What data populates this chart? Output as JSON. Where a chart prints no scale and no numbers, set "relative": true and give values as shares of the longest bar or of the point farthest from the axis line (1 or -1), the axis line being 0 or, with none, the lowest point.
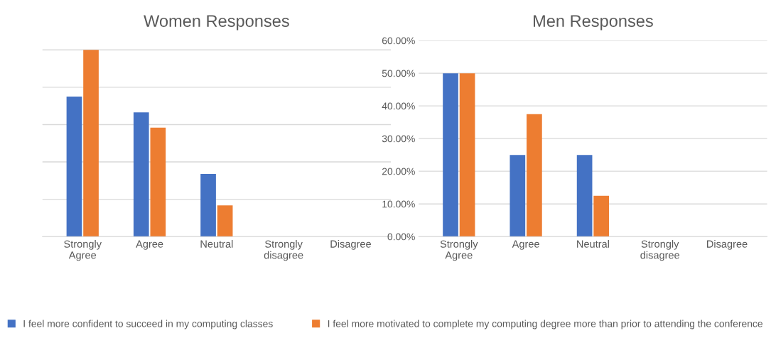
{
  "chart_data": [
    {
      "type": "bar",
      "title": "Women Responses",
      "categories": [
        "Strongly Agree",
        "Agree",
        "Neutral",
        "Strongly disagree",
        "Disagree"
      ],
      "relative": true,
      "grid": "y",
      "legend": "bottom",
      "series": [
        {
          "name": "I feel more confident to succeed in my computing classes",
          "color": "#4472c4",
          "values": [
            0.75,
            0.665,
            0.335,
            0,
            0
          ]
        },
        {
          "name": "I feel more motivated to complete my computing degree more than prior to attending the conference",
          "color": "#ed7d31",
          "values": [
            1,
            0.584,
            0.167,
            0,
            0
          ]
        }
      ]
    },
    {
      "type": "bar",
      "title": "Men Responses",
      "categories": [
        "Strongly Agree",
        "Agree",
        "Neutral",
        "Strongly disagree",
        "Disagree"
      ],
      "ylim": [
        0,
        60
      ],
      "yticks": [
        {
          "value": 0,
          "label": "0.00%"
        },
        {
          "value": 10,
          "label": "10.00%"
        },
        {
          "value": 20,
          "label": "20.00%"
        },
        {
          "value": 30,
          "label": "30.00%"
        },
        {
          "value": 40,
          "label": "40.00%"
        },
        {
          "value": 50,
          "label": "50.00%"
        },
        {
          "value": 60,
          "label": "60.00%"
        }
      ],
      "grid": "y",
      "series": [
        {
          "color": "#4472c4",
          "values": [
            50,
            25,
            25,
            0,
            0
          ]
        },
        {
          "color": "#ed7d31",
          "values": [
            50,
            37.5,
            12.5,
            0,
            0
          ]
        }
      ]
    }
  ]
}
